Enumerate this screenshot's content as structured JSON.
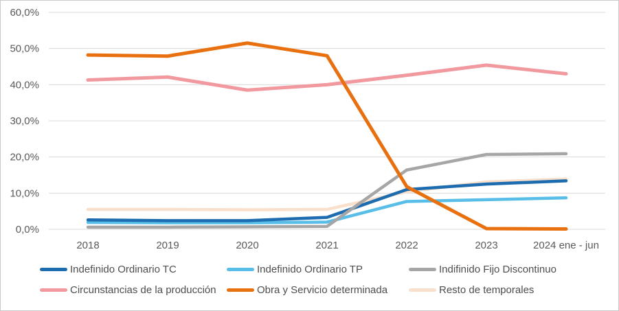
{
  "chart_data": {
    "type": "line",
    "categories": [
      "2018",
      "2019",
      "2020",
      "2021",
      "2022",
      "2023",
      "2024 ene - jun"
    ],
    "series": [
      {
        "name": "Indefinido Ordinario TC",
        "color": "#1E6CB0",
        "values": [
          2.6,
          2.4,
          2.4,
          3.3,
          11.0,
          12.5,
          13.4
        ]
      },
      {
        "name": "Indefinido Ordinario TP",
        "color": "#58BEE8",
        "values": [
          1.9,
          1.8,
          1.8,
          2.0,
          7.7,
          8.2,
          8.7
        ]
      },
      {
        "name": "Indifinido Fijo Discontinuo",
        "color": "#A6A6A6",
        "values": [
          0.6,
          0.6,
          0.7,
          0.8,
          16.4,
          20.7,
          20.9
        ]
      },
      {
        "name": "Circunstancias de la producción",
        "color": "#F1999E",
        "values": [
          41.3,
          42.1,
          38.5,
          40.0,
          42.6,
          45.4,
          43.0
        ]
      },
      {
        "name": "Obra y Servicio determinada",
        "color": "#E8700F",
        "values": [
          48.2,
          47.9,
          51.5,
          48.0,
          11.8,
          0.2,
          0.1
        ]
      },
      {
        "name": "Resto de temporales",
        "color": "#F8E0CC",
        "values": [
          5.5,
          5.5,
          5.4,
          5.5,
          10.4,
          13.1,
          13.9
        ]
      }
    ],
    "title": "",
    "xlabel": "",
    "ylabel": "",
    "ylim": [
      0,
      60
    ],
    "y_tick_labels": [
      "0,0%",
      "10,0%",
      "20,0%",
      "30,0%",
      "40,0%",
      "50,0%",
      "60,0%"
    ],
    "grid": "horizontal",
    "legend_position": "bottom",
    "colors": {
      "gridline": "#D9D9D9",
      "axis_text": "#595959"
    }
  }
}
